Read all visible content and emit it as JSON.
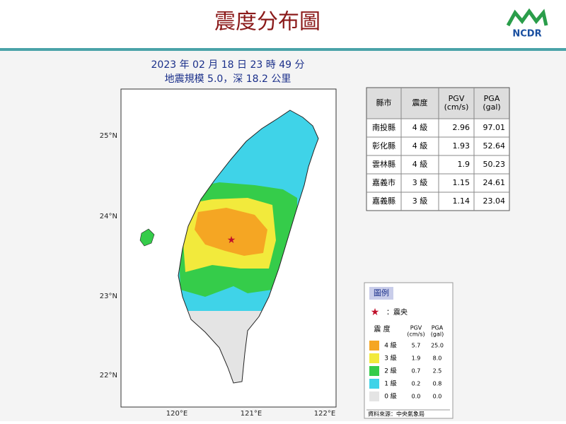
{
  "header": {
    "title": "震度分布圖",
    "logo": "NCDR"
  },
  "map": {
    "date_line": "2023 年 02 月 18 日 23 時 49 分",
    "magnitude_line": "地震規模 5.0，深 18.2 公里",
    "lat_labels": [
      "25°N",
      "24°N",
      "23°N",
      "22°N"
    ],
    "lon_labels": [
      "120°E",
      "121°E",
      "122°E"
    ]
  },
  "table": {
    "headers": [
      "縣市",
      "震度",
      "PGV\n(cm/s)",
      "PGA\n(gal)"
    ],
    "rows": [
      [
        "南投縣",
        "4 級",
        "2.96",
        "97.01"
      ],
      [
        "彰化縣",
        "4 級",
        "1.93",
        "52.64"
      ],
      [
        "雲林縣",
        "4 級",
        "1.9",
        "50.23"
      ],
      [
        "嘉義市",
        "3 級",
        "1.15",
        "24.61"
      ],
      [
        "嘉義縣",
        "3 級",
        "1.14",
        "23.04"
      ]
    ]
  },
  "legend": {
    "title": "圖例",
    "epicenter": "：震央",
    "intensity_header": "震 度",
    "pgv_header": "PGV\n(cm/s)",
    "pga_header": "PGA\n(gal)",
    "rows": [
      [
        "4 級",
        "5.7",
        "25.0"
      ],
      [
        "3 級",
        "1.9",
        "8.0"
      ],
      [
        "2 級",
        "0.7",
        "2.5"
      ],
      [
        "1 級",
        "0.2",
        "0.8"
      ],
      [
        "0 級",
        "0.0",
        "0.0"
      ]
    ],
    "source": "資料來源：中央氣象局"
  }
}
